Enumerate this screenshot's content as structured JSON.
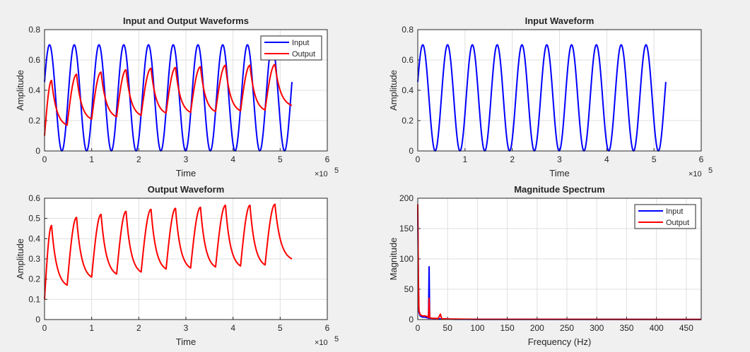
{
  "figure": {
    "background": "#f0f0f0"
  },
  "colors": {
    "input": "#0000ff",
    "output": "#ff0000",
    "grid": "#dfdfdf",
    "axis": "#262626"
  },
  "chart_data": [
    {
      "type": "line",
      "title": "Input and Output Waveforms",
      "xlabel": "Time",
      "ylabel": "Amplitude",
      "xlim": [
        0,
        600000
      ],
      "ylim": [
        0,
        0.8
      ],
      "x_exponent": "×10",
      "x_exponent_power": "5",
      "xticks": [
        0,
        1,
        2,
        3,
        4,
        5,
        6
      ],
      "yticks": [
        0,
        0.2,
        0.4,
        0.6,
        0.8
      ],
      "grid": true,
      "legend": {
        "position": "top-right",
        "entries": [
          "Input",
          "Output"
        ]
      },
      "series": [
        {
          "name": "Input",
          "color": "#0000ff",
          "signal": {
            "kind": "sine",
            "mean": 0.35,
            "amplitude": 0.35,
            "period": 52500,
            "x_start": 0,
            "x_end": 525000,
            "phase_at_start": 0.3
          }
        },
        {
          "name": "Output",
          "color": "#ff0000",
          "signal": {
            "kind": "rc-response",
            "x_start": 0,
            "x_end": 525000,
            "start_value": 0.1,
            "end_value": 0.3,
            "peaks_x": [
              15000,
              68000,
              120000,
              173000,
              226000,
              278000,
              331000,
              384000,
              436000,
              489000
            ],
            "peaks_y": [
              0.465,
              0.505,
              0.52,
              0.535,
              0.545,
              0.55,
              0.555,
              0.565,
              0.565,
              0.57
            ],
            "troughs_x": [
              48000,
              100000,
              153000,
              205000,
              258000,
              310000,
              363000,
              416000,
              468000
            ],
            "troughs_y": [
              0.17,
              0.21,
              0.225,
              0.235,
              0.25,
              0.255,
              0.26,
              0.265,
              0.27
            ]
          }
        }
      ]
    },
    {
      "type": "line",
      "title": "Input Waveform",
      "xlabel": "Time",
      "ylabel": "Amplitude",
      "xlim": [
        0,
        600000
      ],
      "ylim": [
        0,
        0.8
      ],
      "x_exponent": "×10",
      "x_exponent_power": "5",
      "xticks": [
        0,
        1,
        2,
        3,
        4,
        5,
        6
      ],
      "yticks": [
        0,
        0.2,
        0.4,
        0.6,
        0.8
      ],
      "grid": true,
      "series": [
        {
          "color": "#0000ff",
          "signal": {
            "kind": "sine",
            "mean": 0.35,
            "amplitude": 0.35,
            "period": 52500,
            "x_start": 0,
            "x_end": 525000,
            "phase_at_start": 0.3
          }
        }
      ]
    },
    {
      "type": "line",
      "title": "Output Waveform",
      "xlabel": "Time",
      "ylabel": "Amplitude",
      "xlim": [
        0,
        600000
      ],
      "ylim": [
        0,
        0.6
      ],
      "x_exponent": "×10",
      "x_exponent_power": "5",
      "xticks": [
        0,
        1,
        2,
        3,
        4,
        5,
        6
      ],
      "yticks": [
        0,
        0.1,
        0.2,
        0.3,
        0.4,
        0.5,
        0.6
      ],
      "grid": true,
      "series": [
        {
          "color": "#ff0000",
          "signal": {
            "kind": "rc-response",
            "x_start": 0,
            "x_end": 525000,
            "start_value": 0.1,
            "end_value": 0.3,
            "peaks_x": [
              15000,
              68000,
              120000,
              173000,
              226000,
              278000,
              331000,
              384000,
              436000,
              489000
            ],
            "peaks_y": [
              0.465,
              0.505,
              0.52,
              0.535,
              0.545,
              0.55,
              0.555,
              0.565,
              0.565,
              0.57
            ],
            "troughs_x": [
              48000,
              100000,
              153000,
              205000,
              258000,
              310000,
              363000,
              416000,
              468000
            ],
            "troughs_y": [
              0.17,
              0.21,
              0.225,
              0.235,
              0.25,
              0.255,
              0.26,
              0.265,
              0.27
            ]
          }
        }
      ]
    },
    {
      "type": "line",
      "title": "Magnitude Spectrum",
      "xlabel": "Frequency (Hz)",
      "ylabel": "Magnitude",
      "xlim": [
        0,
        475
      ],
      "ylim": [
        0,
        200
      ],
      "xticks": [
        0,
        50,
        100,
        150,
        200,
        250,
        300,
        350,
        400,
        450
      ],
      "yticks": [
        0,
        50,
        100,
        150,
        200
      ],
      "grid": true,
      "legend": {
        "position": "top-right",
        "entries": [
          "Input",
          "Output"
        ]
      },
      "series": [
        {
          "name": "Input",
          "color": "#0000ff",
          "points": [
            [
              0,
              185
            ],
            [
              1,
              60
            ],
            [
              2,
              12
            ],
            [
              4,
              6
            ],
            [
              8,
              4
            ],
            [
              12,
              4
            ],
            [
              16,
              3
            ],
            [
              18,
              2
            ],
            [
              19,
              87
            ],
            [
              20,
              2
            ],
            [
              24,
              2
            ],
            [
              30,
              1.5
            ],
            [
              40,
              1
            ],
            [
              60,
              0.5
            ],
            [
              100,
              0.3
            ],
            [
              475,
              0.2
            ]
          ]
        },
        {
          "name": "Output",
          "color": "#ff0000",
          "points": [
            [
              0,
              190
            ],
            [
              1,
              70
            ],
            [
              2,
              15
            ],
            [
              4,
              8
            ],
            [
              8,
              6
            ],
            [
              12,
              6
            ],
            [
              16,
              5
            ],
            [
              18,
              3
            ],
            [
              19,
              35
            ],
            [
              20,
              3
            ],
            [
              24,
              2
            ],
            [
              30,
              2
            ],
            [
              34,
              1.5
            ],
            [
              38,
              9
            ],
            [
              40,
              1.5
            ],
            [
              50,
              1
            ],
            [
              60,
              0.8
            ],
            [
              100,
              0.4
            ],
            [
              475,
              0.3
            ]
          ]
        }
      ]
    }
  ]
}
